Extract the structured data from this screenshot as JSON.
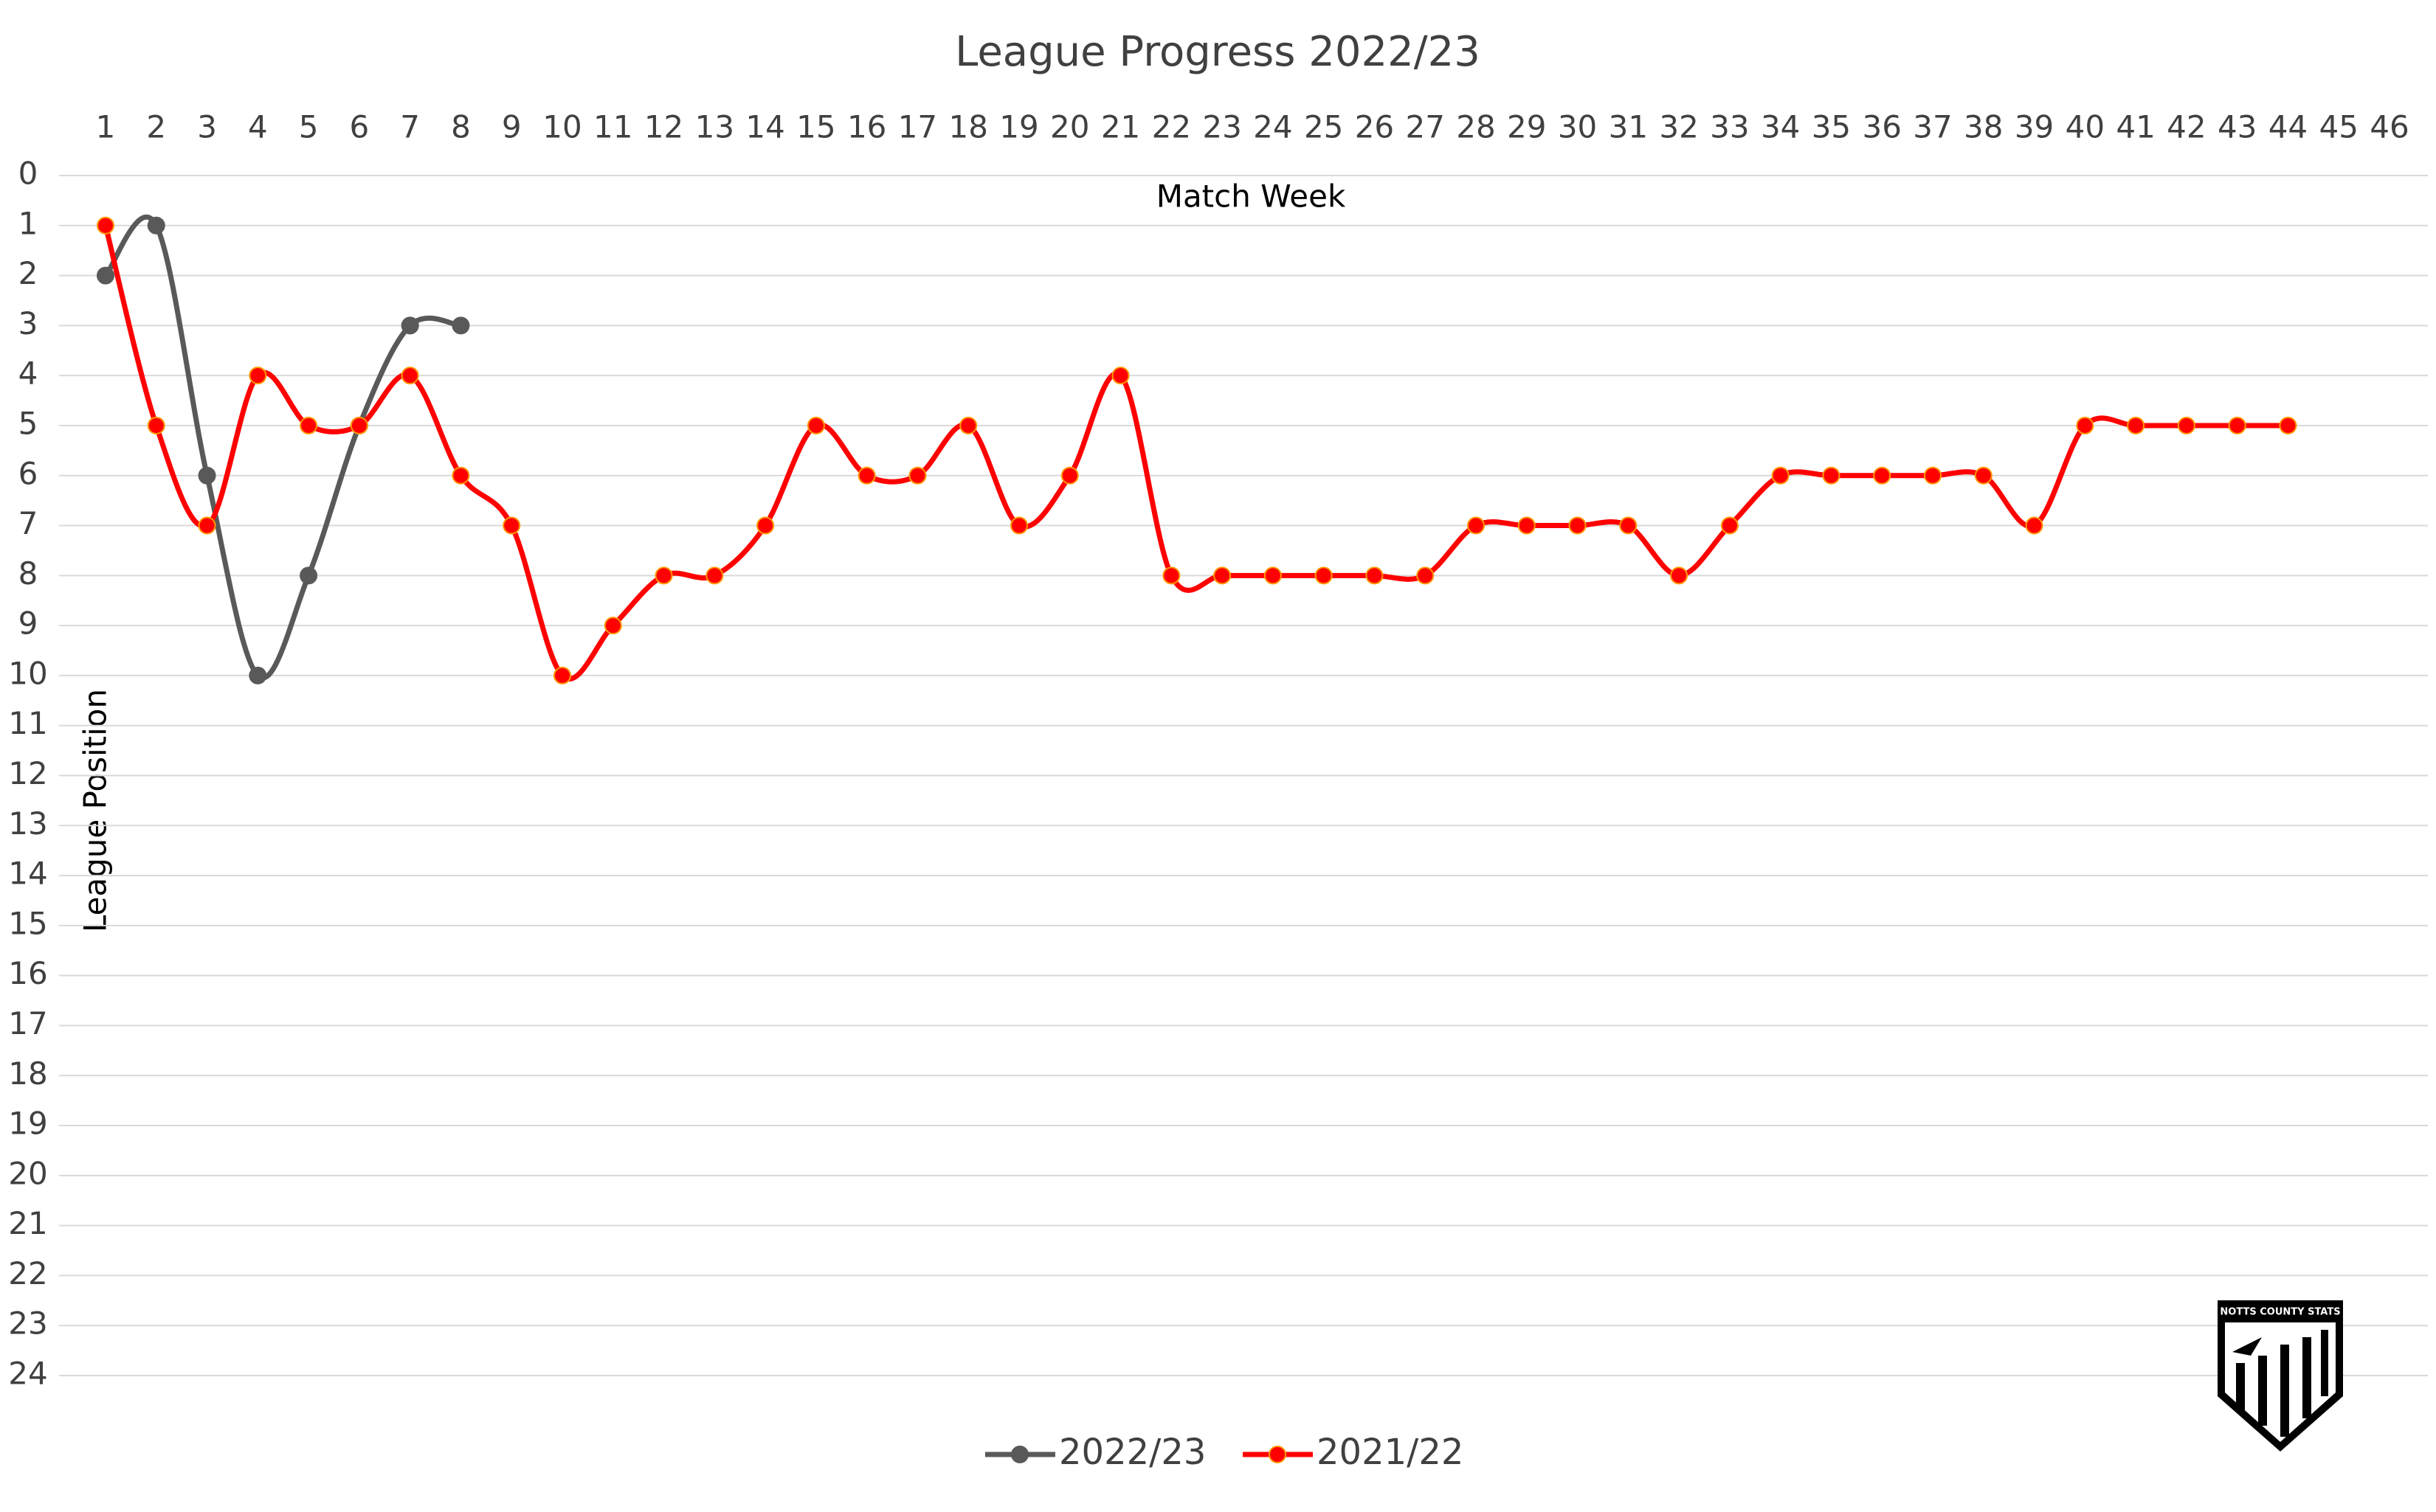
{
  "chart_data": {
    "type": "line",
    "title": "League Progress 2022/23",
    "x_label": "Match Week",
    "y_label": "League Position",
    "categories": [
      "1",
      "2",
      "3",
      "4",
      "5",
      "6",
      "7",
      "8",
      "9",
      "10",
      "11",
      "12",
      "13",
      "14",
      "15",
      "16",
      "17",
      "18",
      "19",
      "20",
      "21",
      "22",
      "23",
      "24",
      "25",
      "26",
      "27",
      "28",
      "29",
      "30",
      "31",
      "32",
      "33",
      "34",
      "35",
      "36",
      "37",
      "38",
      "39",
      "40",
      "41",
      "42",
      "43",
      "44",
      "45",
      "46"
    ],
    "ylim": [
      24,
      0
    ],
    "yticks": [
      0,
      1,
      2,
      3,
      4,
      5,
      6,
      7,
      8,
      9,
      10,
      11,
      12,
      13,
      14,
      15,
      16,
      17,
      18,
      19,
      20,
      21,
      22,
      23,
      24
    ],
    "grid": true,
    "smooth": true,
    "legend": "bottom",
    "series": [
      {
        "name": "2022/23",
        "color": "#595959",
        "values": [
          2,
          1,
          6,
          10,
          8,
          5,
          3,
          3,
          null,
          null,
          null,
          null,
          null,
          null,
          null,
          null,
          null,
          null,
          null,
          null,
          null,
          null,
          null,
          null,
          null,
          null,
          null,
          null,
          null,
          null,
          null,
          null,
          null,
          null,
          null,
          null,
          null,
          null,
          null,
          null,
          null,
          null,
          null,
          null,
          null,
          null
        ]
      },
      {
        "name": "2021/22",
        "color": "#ff0000",
        "values": [
          1,
          5,
          7,
          4,
          5,
          5,
          4,
          6,
          7,
          10,
          9,
          8,
          8,
          7,
          5,
          6,
          6,
          5,
          7,
          6,
          4,
          8,
          8,
          8,
          8,
          8,
          8,
          7,
          7,
          7,
          7,
          8,
          7,
          6,
          6,
          6,
          6,
          6,
          7,
          5,
          5,
          5,
          5,
          5,
          null,
          null
        ]
      }
    ]
  },
  "logo": {
    "text": "NOTTS COUNTY STATS"
  }
}
